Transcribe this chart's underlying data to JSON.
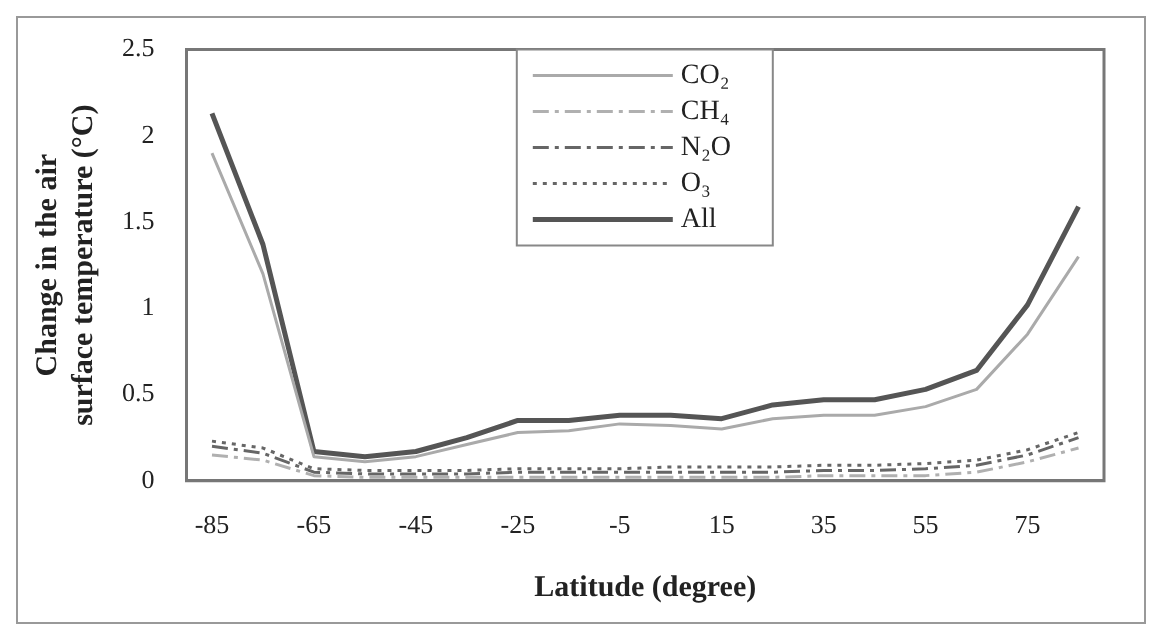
{
  "chart_data": {
    "type": "line",
    "xlabel": "Latitude (degree)",
    "ylabel": "Change in the air surface temperature (°C)",
    "categories": [
      "-85",
      null,
      "-65",
      null,
      "-45",
      null,
      "-25",
      null,
      "-5",
      null,
      "15",
      null,
      "35",
      null,
      "55",
      null,
      "75",
      null
    ],
    "series": [
      {
        "name": "CO₂",
        "color": "#aaaaaa",
        "line_style": "solid",
        "values": [
          1.9,
          1.2,
          0.14,
          0.11,
          0.14,
          0.21,
          0.28,
          0.29,
          0.33,
          0.32,
          0.3,
          0.36,
          0.38,
          0.38,
          0.43,
          0.53,
          0.85,
          1.3
        ]
      },
      {
        "name": "CH₄",
        "color": "#b0b0b0",
        "line_style": "dashdot",
        "values": [
          0.15,
          0.12,
          0.03,
          0.02,
          0.02,
          0.02,
          0.02,
          0.02,
          0.02,
          0.02,
          0.02,
          0.02,
          0.03,
          0.03,
          0.03,
          0.05,
          0.11,
          0.19
        ]
      },
      {
        "name": "N₂O",
        "color": "#666666",
        "line_style": "dashdot",
        "values": [
          0.2,
          0.16,
          0.05,
          0.04,
          0.04,
          0.04,
          0.05,
          0.05,
          0.05,
          0.05,
          0.05,
          0.05,
          0.06,
          0.06,
          0.07,
          0.09,
          0.15,
          0.25
        ]
      },
      {
        "name": "O₃",
        "color": "#666666",
        "line_style": "dotted",
        "values": [
          0.23,
          0.19,
          0.07,
          0.06,
          0.06,
          0.06,
          0.07,
          0.07,
          0.07,
          0.08,
          0.08,
          0.08,
          0.09,
          0.09,
          0.1,
          0.12,
          0.18,
          0.28
        ]
      },
      {
        "name": "All",
        "color": "#555555",
        "line_style": "solid",
        "values": [
          2.13,
          1.37,
          0.17,
          0.14,
          0.17,
          0.25,
          0.35,
          0.35,
          0.38,
          0.38,
          0.36,
          0.44,
          0.47,
          0.47,
          0.53,
          0.64,
          1.02,
          1.59
        ]
      }
    ],
    "ylim": [
      0,
      2.5
    ],
    "yticks": [
      0,
      0.5,
      1,
      1.5,
      2,
      2.5
    ],
    "grid": false,
    "legend": "top",
    "marker": "none"
  }
}
